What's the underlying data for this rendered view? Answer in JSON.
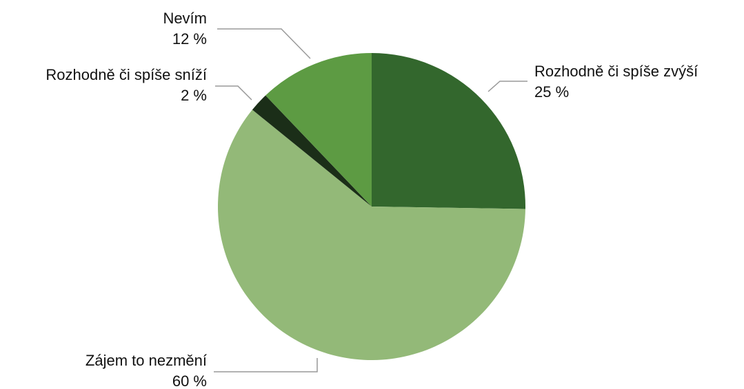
{
  "chart_data": {
    "type": "pie",
    "categories": [
      "Rozhodně či spíše zvýší",
      "Zájem to nezmění",
      "Rozhodně či spíše sníží",
      "Nevím"
    ],
    "values": [
      25,
      60,
      2,
      12
    ],
    "value_labels": [
      "25 %",
      "60 %",
      "2 %",
      "12 %"
    ],
    "colors": [
      "#33672d",
      "#93b978",
      "#1b2e18",
      "#5d9b43"
    ]
  }
}
